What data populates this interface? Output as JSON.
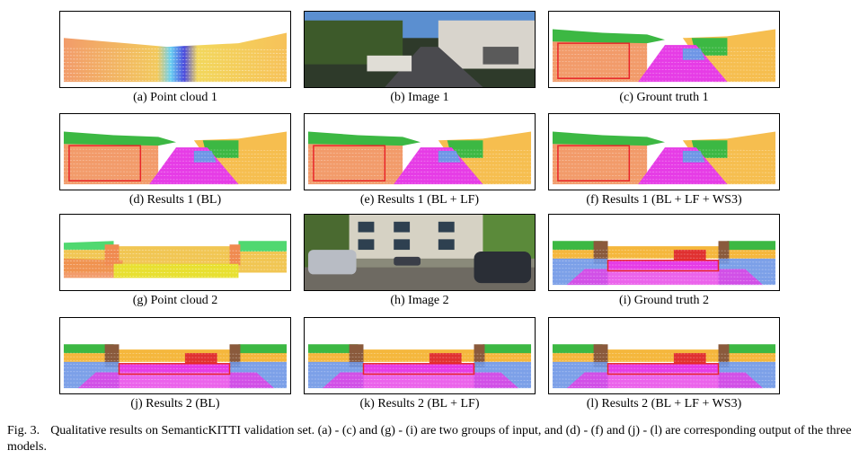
{
  "panels": [
    {
      "id": "a",
      "caption": "(a)  Point cloud 1",
      "kind": "cloud1",
      "box": false
    },
    {
      "id": "b",
      "caption": "(b)  Image 1",
      "kind": "image1",
      "box": false
    },
    {
      "id": "c",
      "caption": "(c)  Grount truth 1",
      "kind": "seg1",
      "box": true
    },
    {
      "id": "d",
      "caption": "(d)  Results 1 (BL)",
      "kind": "seg1",
      "box": true
    },
    {
      "id": "e",
      "caption": "(e)  Results 1 (BL + LF)",
      "kind": "seg1",
      "box": true
    },
    {
      "id": "f",
      "caption": "(f)  Results 1 (BL + LF + WS3)",
      "kind": "seg1",
      "box": true
    },
    {
      "id": "g",
      "caption": "(g)  Point cloud 2",
      "kind": "cloud2",
      "box": false
    },
    {
      "id": "h",
      "caption": "(h)  Image 2",
      "kind": "image2",
      "box": false
    },
    {
      "id": "i",
      "caption": "(i)  Ground truth 2",
      "kind": "seg2",
      "box": true
    },
    {
      "id": "j",
      "caption": "(j)  Results 2 (BL)",
      "kind": "seg2",
      "box": true
    },
    {
      "id": "k",
      "caption": "(k)  Results 2 (BL + LF)",
      "kind": "seg2",
      "box": true
    },
    {
      "id": "l",
      "caption": "(l)  Results 2 (BL + LF + WS3)",
      "kind": "seg2",
      "box": true
    }
  ],
  "figure_caption": {
    "label": "Fig. 3.",
    "text": "Qualitative results on SemanticKITTI validation set. (a) - (c) and (g) - (i) are two groups of input, and (d) - (f) and (j) - (l) are corresponding output of the three models."
  },
  "colors": {
    "vegetation": "#3cb843",
    "building": "#f5b73c",
    "road": "#e63ce6",
    "sidewalk": "#9b4fb0",
    "terrain": "#f08a50",
    "car": "#6e96e6",
    "fence": "#8a5a3c",
    "box": "#e8262a"
  }
}
